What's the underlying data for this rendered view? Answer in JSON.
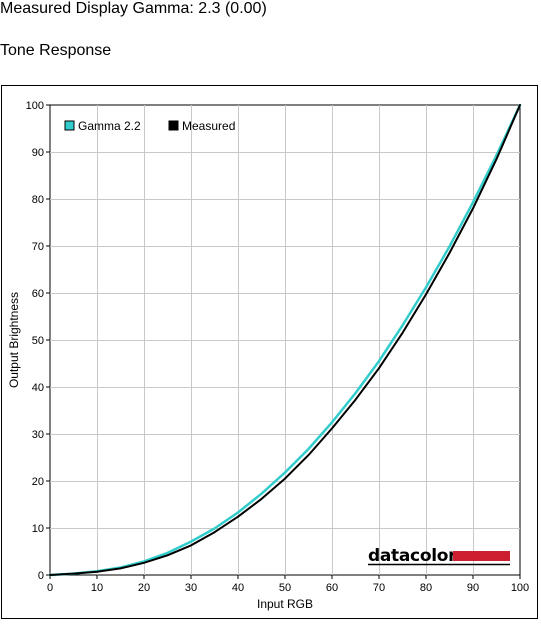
{
  "header": {
    "title": "Measured Display Gamma: 2.3 (0.00)",
    "section": "Tone Response"
  },
  "logo": {
    "text": "datacolor",
    "accent_color": "#cc1f2f"
  },
  "chart_data": {
    "type": "line",
    "xlabel": "Input RGB",
    "ylabel": "Output Brightness",
    "xlim": [
      0,
      100
    ],
    "ylim": [
      0,
      100
    ],
    "xticks": [
      0,
      10,
      20,
      30,
      40,
      50,
      60,
      70,
      80,
      90,
      100
    ],
    "yticks": [
      0,
      10,
      20,
      30,
      40,
      50,
      60,
      70,
      80,
      90,
      100
    ],
    "grid": true,
    "legend_position": "top-left",
    "x": [
      0,
      5,
      10,
      15,
      20,
      25,
      30,
      35,
      40,
      45,
      50,
      55,
      60,
      65,
      70,
      75,
      80,
      85,
      90,
      95,
      100
    ],
    "series": [
      {
        "name": "Gamma 2.2",
        "color": "#33cccc",
        "values": [
          0,
          0.3,
          0.8,
          1.6,
          2.9,
          4.7,
          7.1,
          9.9,
          13.3,
          17.3,
          21.8,
          26.8,
          32.5,
          38.7,
          45.5,
          53.1,
          61.2,
          69.9,
          79.3,
          89.3,
          100
        ]
      },
      {
        "name": "Measured",
        "color": "#000000",
        "values": [
          0,
          0.3,
          0.7,
          1.4,
          2.6,
          4.2,
          6.3,
          9.1,
          12.4,
          16.2,
          20.5,
          25.5,
          31.2,
          37.3,
          44.0,
          51.5,
          59.7,
          68.5,
          78.0,
          88.5,
          100
        ]
      }
    ]
  }
}
